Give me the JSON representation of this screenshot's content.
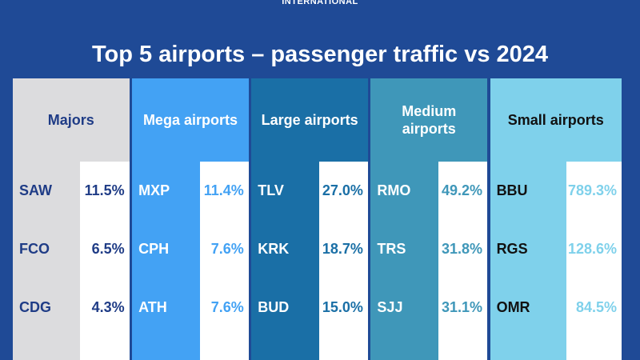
{
  "brand": "INTERNATIONAL",
  "title": "Top 5 airports – passenger traffic vs 2024",
  "groups": [
    {
      "header": "Majors",
      "color": "#dcdcde",
      "text": "#1f3c86",
      "valcolor": "#1f3c86",
      "rows": [
        {
          "code": "SAW",
          "value": "11.5%"
        },
        {
          "code": "FCO",
          "value": "6.5%"
        },
        {
          "code": "CDG",
          "value": "4.3%"
        }
      ]
    },
    {
      "header": "Mega airports",
      "color": "#43a2f4",
      "text": "#ffffff",
      "valcolor": "#43a2f4",
      "rows": [
        {
          "code": "MXP",
          "value": "11.4%"
        },
        {
          "code": "CPH",
          "value": "7.6%"
        },
        {
          "code": "ATH",
          "value": "7.6%"
        }
      ]
    },
    {
      "header": "Large airports",
      "color": "#1a6fa6",
      "text": "#ffffff",
      "valcolor": "#1a6fa6",
      "rows": [
        {
          "code": "TLV",
          "value": "27.0%"
        },
        {
          "code": "KRK",
          "value": "18.7%"
        },
        {
          "code": "BUD",
          "value": "15.0%"
        }
      ]
    },
    {
      "header": "Medium airports",
      "color": "#3f97b9",
      "text": "#ffffff",
      "valcolor": "#3f97b9",
      "rows": [
        {
          "code": "RMO",
          "value": "49.2%"
        },
        {
          "code": "TRS",
          "value": "31.8%"
        },
        {
          "code": "SJJ",
          "value": "31.1%"
        }
      ]
    },
    {
      "header": "Small airports",
      "color": "#7fd1eb",
      "text": "#111111",
      "valcolor": "#7fd1eb",
      "rows": [
        {
          "code": "BBU",
          "value": "789.3%"
        },
        {
          "code": "RGS",
          "value": "128.6%"
        },
        {
          "code": "OMR",
          "value": "84.5%"
        }
      ]
    }
  ]
}
